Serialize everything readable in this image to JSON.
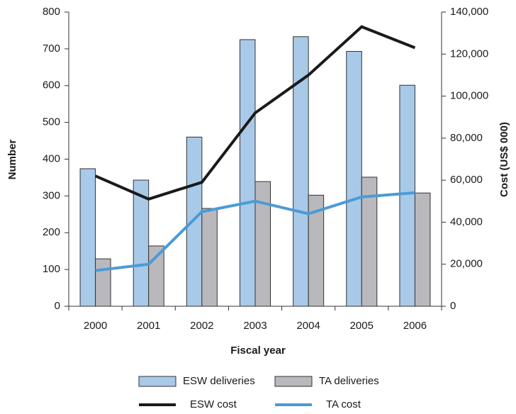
{
  "chart_data": {
    "type": "bar",
    "categories": [
      "2000",
      "2001",
      "2002",
      "2003",
      "2004",
      "2005",
      "2006"
    ],
    "series": [
      {
        "name": "ESW deliveries",
        "type": "bar",
        "color": "#a9c9e9",
        "values": [
          374,
          343,
          460,
          725,
          733,
          693,
          601
        ]
      },
      {
        "name": "TA deliveries",
        "type": "bar",
        "color": "#b9b9bd",
        "values": [
          129,
          164,
          266,
          339,
          302,
          351,
          308
        ]
      },
      {
        "name": "ESW cost",
        "type": "line",
        "axis": "y2",
        "color": "#1a1a1a",
        "values": [
          62000,
          51000,
          59000,
          92000,
          110000,
          133000,
          123000
        ]
      },
      {
        "name": "TA cost",
        "type": "line",
        "axis": "y2",
        "color": "#4b9bd6",
        "values": [
          17000,
          20000,
          45000,
          50000,
          44000,
          52000,
          54000
        ]
      }
    ],
    "x_label": "Fiscal year",
    "y_label": "Number",
    "y2_label": "Cost (US$ 000)",
    "ylim": [
      0,
      800
    ],
    "yticks": [
      0,
      100,
      200,
      300,
      400,
      500,
      600,
      700,
      800
    ],
    "y2lim": [
      0,
      140000
    ],
    "y2ticks": [
      {
        "value": 0,
        "label": "0"
      },
      {
        "value": 20000,
        "label": "20,000"
      },
      {
        "value": 40000,
        "label": "40,000"
      },
      {
        "value": 60000,
        "label": "60,000"
      },
      {
        "value": 80000,
        "label": "80,000"
      },
      {
        "value": 100000,
        "label": "100,000"
      },
      {
        "value": 120000,
        "label": "120,000"
      },
      {
        "value": 140000,
        "label": "140,000"
      }
    ],
    "grid": false
  }
}
